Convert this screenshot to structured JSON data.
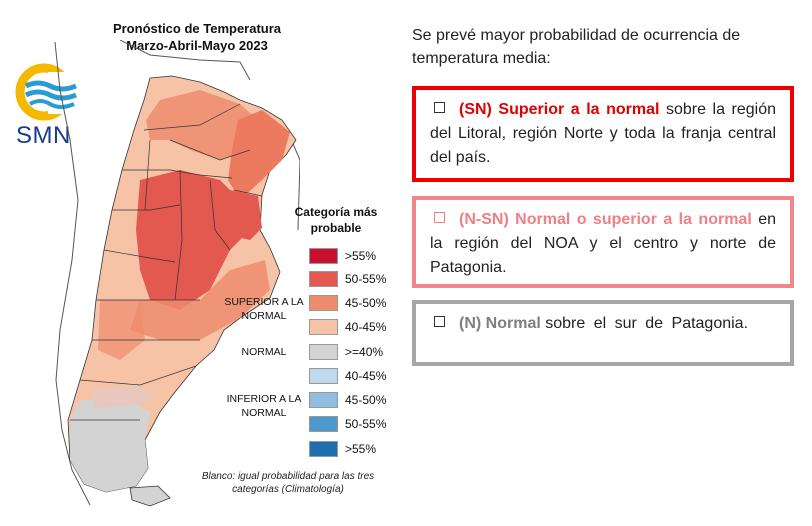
{
  "map": {
    "title_line1": "Pronóstico de Temperatura",
    "title_line2": "Marzo-Abril-Mayo 2023"
  },
  "logo": {
    "text": "SMN"
  },
  "legend": {
    "title": "Categoría más probable",
    "superior_label": "SUPERIOR A LA NORMAL",
    "normal_label": "NORMAL",
    "inferior_label": "INFERIOR A LA NORMAL",
    "items": [
      {
        "label": ">55%",
        "color": "#c8102e"
      },
      {
        "label": "50-55%",
        "color": "#e3584f"
      },
      {
        "label": "45-50%",
        "color": "#ef8c6e"
      },
      {
        "label": "40-45%",
        "color": "#f6c3a6"
      },
      {
        "label": ">=40%",
        "color": "#d3d3d3"
      },
      {
        "label": "40-45%",
        "color": "#c0d9ee"
      },
      {
        "label": "45-50%",
        "color": "#8fbde0"
      },
      {
        "label": "50-55%",
        "color": "#4d98cc"
      },
      {
        "label": ">55%",
        "color": "#1f6fb0"
      }
    ],
    "note": "Blanco: igual probabilidad para las tres categorías (Climatología)"
  },
  "text": {
    "intro": "Se prevé mayor probabilidad de ocurrencia de temperatura media:",
    "box1_highlight": "(SN) Superior a la normal",
    "box1_rest": "sobre la región del Litoral, región Norte y toda la franja central del país.",
    "box2_highlight": "(N-SN) Normal o superior a la normal",
    "box2_rest": "en la región del NOA y el centro y norte de Patagonia.",
    "box3_highlight": "(N) Normal",
    "box3_rest": "sobre el sur de Patagonia."
  },
  "colors": {
    "superior": "#ee0000",
    "normal_o_superior": "#f2878b",
    "normal": "#a6a6a6"
  }
}
